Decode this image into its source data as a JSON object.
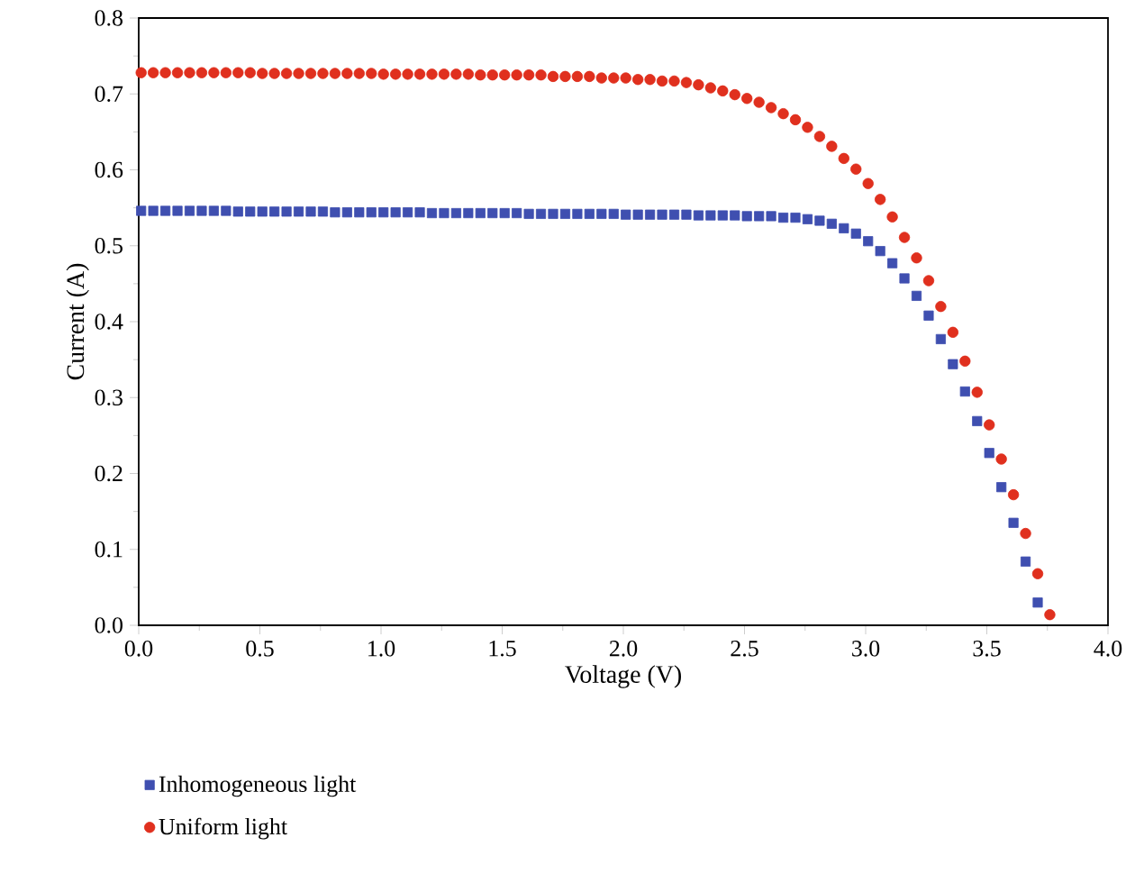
{
  "chart_data": {
    "type": "scatter",
    "xlabel": "Voltage (V)",
    "ylabel": "Current (A)",
    "xlim": [
      0,
      4
    ],
    "ylim": [
      0,
      0.8
    ],
    "xticks": [
      {
        "value": 0,
        "label": "0.0"
      },
      {
        "value": 0.5,
        "label": "0.5"
      },
      {
        "value": 1,
        "label": "1.0"
      },
      {
        "value": 1.5,
        "label": "1.5"
      },
      {
        "value": 2,
        "label": "2.0"
      },
      {
        "value": 2.5,
        "label": "2.5"
      },
      {
        "value": 3,
        "label": "3.0"
      },
      {
        "value": 3.5,
        "label": "3.5"
      },
      {
        "value": 4,
        "label": "4.0"
      }
    ],
    "yticks": [
      {
        "value": 0,
        "label": "0.0"
      },
      {
        "value": 0.1,
        "label": "0.1"
      },
      {
        "value": 0.2,
        "label": "0.2"
      },
      {
        "value": 0.3,
        "label": "0.3"
      },
      {
        "value": 0.4,
        "label": "0.4"
      },
      {
        "value": 0.5,
        "label": "0.5"
      },
      {
        "value": 0.6,
        "label": "0.6"
      },
      {
        "value": 0.7,
        "label": "0.7"
      },
      {
        "value": 0.8,
        "label": "0.8"
      }
    ],
    "grid": false,
    "legend": "bottom left",
    "series": [
      {
        "name": "Inhomogeneous light",
        "color": "#3f4fb0",
        "marker": "square",
        "x": [
          0.01,
          0.06,
          0.11,
          0.16,
          0.21,
          0.26,
          0.31,
          0.36,
          0.41,
          0.46,
          0.51,
          0.56,
          0.61,
          0.66,
          0.71,
          0.76,
          0.81,
          0.86,
          0.91,
          0.96,
          1.01,
          1.06,
          1.11,
          1.16,
          1.21,
          1.26,
          1.31,
          1.36,
          1.41,
          1.46,
          1.51,
          1.56,
          1.61,
          1.66,
          1.71,
          1.76,
          1.81,
          1.86,
          1.91,
          1.96,
          2.01,
          2.06,
          2.11,
          2.16,
          2.21,
          2.26,
          2.31,
          2.36,
          2.41,
          2.46,
          2.51,
          2.56,
          2.61,
          2.66,
          2.71,
          2.76,
          2.81,
          2.86,
          2.91,
          2.96,
          3.01,
          3.06,
          3.11,
          3.16,
          3.21,
          3.26,
          3.31,
          3.36,
          3.41,
          3.46,
          3.51,
          3.56,
          3.61,
          3.66,
          3.71
        ],
        "values": [
          0.546,
          0.546,
          0.546,
          0.546,
          0.546,
          0.546,
          0.546,
          0.546,
          0.545,
          0.545,
          0.545,
          0.545,
          0.545,
          0.545,
          0.545,
          0.545,
          0.544,
          0.544,
          0.544,
          0.544,
          0.544,
          0.544,
          0.544,
          0.544,
          0.543,
          0.543,
          0.543,
          0.543,
          0.543,
          0.543,
          0.543,
          0.543,
          0.542,
          0.542,
          0.542,
          0.542,
          0.542,
          0.542,
          0.542,
          0.542,
          0.541,
          0.541,
          0.541,
          0.541,
          0.541,
          0.541,
          0.54,
          0.54,
          0.54,
          0.54,
          0.539,
          0.539,
          0.539,
          0.537,
          0.537,
          0.535,
          0.533,
          0.529,
          0.523,
          0.516,
          0.506,
          0.493,
          0.477,
          0.457,
          0.434,
          0.408,
          0.377,
          0.344,
          0.308,
          0.269,
          0.227,
          0.182,
          0.135,
          0.084,
          0.03
        ]
      },
      {
        "name": "Uniform light",
        "color": "#e0301e",
        "marker": "circle",
        "x": [
          0.01,
          0.06,
          0.11,
          0.16,
          0.21,
          0.26,
          0.31,
          0.36,
          0.41,
          0.46,
          0.51,
          0.56,
          0.61,
          0.66,
          0.71,
          0.76,
          0.81,
          0.86,
          0.91,
          0.96,
          1.01,
          1.06,
          1.11,
          1.16,
          1.21,
          1.26,
          1.31,
          1.36,
          1.41,
          1.46,
          1.51,
          1.56,
          1.61,
          1.66,
          1.71,
          1.76,
          1.81,
          1.86,
          1.91,
          1.96,
          2.01,
          2.06,
          2.11,
          2.16,
          2.21,
          2.26,
          2.31,
          2.36,
          2.41,
          2.46,
          2.51,
          2.56,
          2.61,
          2.66,
          2.71,
          2.76,
          2.81,
          2.86,
          2.91,
          2.96,
          3.01,
          3.06,
          3.11,
          3.16,
          3.21,
          3.26,
          3.31,
          3.36,
          3.41,
          3.46,
          3.51,
          3.56,
          3.61,
          3.66,
          3.71,
          3.76
        ],
        "values": [
          0.728,
          0.728,
          0.728,
          0.728,
          0.728,
          0.728,
          0.728,
          0.728,
          0.728,
          0.728,
          0.727,
          0.727,
          0.727,
          0.727,
          0.727,
          0.727,
          0.727,
          0.727,
          0.727,
          0.727,
          0.726,
          0.726,
          0.726,
          0.726,
          0.726,
          0.726,
          0.726,
          0.726,
          0.725,
          0.725,
          0.725,
          0.725,
          0.725,
          0.725,
          0.723,
          0.723,
          0.723,
          0.723,
          0.721,
          0.721,
          0.721,
          0.719,
          0.719,
          0.717,
          0.717,
          0.715,
          0.712,
          0.708,
          0.704,
          0.699,
          0.694,
          0.689,
          0.682,
          0.674,
          0.666,
          0.656,
          0.644,
          0.631,
          0.615,
          0.601,
          0.582,
          0.561,
          0.538,
          0.511,
          0.484,
          0.454,
          0.42,
          0.386,
          0.348,
          0.307,
          0.264,
          0.219,
          0.172,
          0.121,
          0.068,
          0.014
        ]
      }
    ]
  }
}
